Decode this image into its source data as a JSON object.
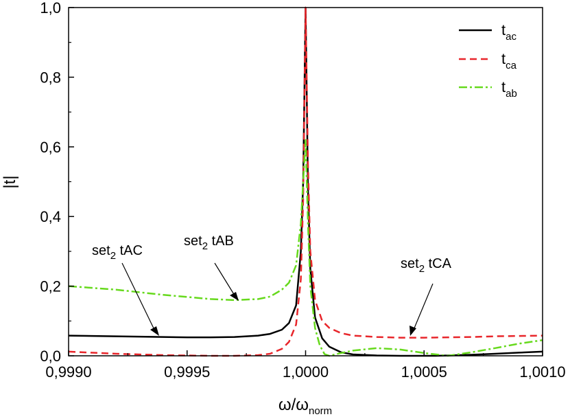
{
  "chart_data": {
    "type": "line",
    "title": "",
    "xlabel": "ω/ω",
    "xlabel_sub": "norm",
    "ylabel": "|t|",
    "xlim": [
      0.999,
      1.001
    ],
    "ylim": [
      0.0,
      1.0
    ],
    "x_ticks": [
      "0,9990",
      "0,9995",
      "1,0000",
      "1,0005",
      "1,0010"
    ],
    "y_ticks": [
      "0,0",
      "0,2",
      "0,4",
      "0,6",
      "0,8",
      "1,0"
    ],
    "grid": false,
    "legend_position": "top-right",
    "series": [
      {
        "name": "t",
        "name_sub": "ac",
        "color": "#000000",
        "style": "solid",
        "x": [
          0.999,
          0.9992,
          0.9994,
          0.9995,
          0.9996,
          0.9997,
          0.9998,
          0.99985,
          0.9999,
          0.99993,
          0.99996,
          0.99998,
          0.99999,
          1.0,
          1.00001,
          1.00002,
          1.00004,
          1.00007,
          1.0001,
          1.00015,
          1.0002,
          1.0003,
          1.0004,
          1.0005,
          1.00055,
          1.0006,
          1.0007,
          1.0008,
          1.0009,
          1.001
        ],
        "y": [
          0.058,
          0.056,
          0.054,
          0.053,
          0.053,
          0.054,
          0.058,
          0.063,
          0.075,
          0.094,
          0.145,
          0.3,
          0.5,
          1.0,
          0.48,
          0.25,
          0.11,
          0.05,
          0.026,
          0.01,
          0.004,
          0.001,
          0.0,
          0.0,
          0.0,
          0.001,
          0.003,
          0.006,
          0.009,
          0.012
        ]
      },
      {
        "name": "t",
        "name_sub": "ca",
        "color": "#e8262b",
        "style": "dashed",
        "x": [
          0.999,
          0.9992,
          0.9994,
          0.9996,
          0.9997,
          0.9998,
          0.99985,
          0.9999,
          0.99993,
          0.99996,
          0.99998,
          0.99999,
          1.0,
          1.00001,
          1.00002,
          1.00004,
          1.00007,
          1.0001,
          1.00015,
          1.0002,
          1.0003,
          1.0004,
          1.0005,
          1.0006,
          1.0007,
          1.0008,
          1.0009,
          1.001
        ],
        "y": [
          0.012,
          0.006,
          0.002,
          0.0,
          0.0,
          0.002,
          0.006,
          0.02,
          0.04,
          0.09,
          0.22,
          0.45,
          1.0,
          0.55,
          0.3,
          0.16,
          0.1,
          0.08,
          0.065,
          0.058,
          0.054,
          0.052,
          0.052,
          0.053,
          0.054,
          0.056,
          0.057,
          0.058
        ]
      },
      {
        "name": "t",
        "name_sub": "ab",
        "color": "#66d91c",
        "style": "dashdot",
        "x": [
          0.999,
          0.9992,
          0.9994,
          0.9996,
          0.9997,
          0.9998,
          0.99985,
          0.9999,
          0.99993,
          0.99996,
          0.99998,
          0.99999,
          1.0,
          1.00001,
          1.00002,
          1.00004,
          1.00006,
          1.00008,
          1.0001,
          1.00015,
          1.0002,
          1.0003,
          1.0004,
          1.0005,
          1.0006,
          1.0007,
          1.0008,
          1.0009,
          1.001
        ],
        "y": [
          0.2,
          0.19,
          0.175,
          0.163,
          0.16,
          0.163,
          0.17,
          0.19,
          0.21,
          0.26,
          0.38,
          0.5,
          0.62,
          0.38,
          0.2,
          0.08,
          0.03,
          0.005,
          0.0,
          0.008,
          0.015,
          0.022,
          0.018,
          0.008,
          0.0,
          0.01,
          0.022,
          0.035,
          0.045
        ]
      }
    ],
    "annotations": [
      {
        "text": "set",
        "sub": "2",
        "rest": " tAC",
        "target_x": 0.99935,
        "target_y": 0.054
      },
      {
        "text": "set",
        "sub": "2",
        "rest": " tAB",
        "target_x": 0.99974,
        "target_y": 0.16
      },
      {
        "text": "set",
        "sub": "2",
        "rest": " tCA",
        "target_x": 1.00035,
        "target_y": 0.054
      }
    ]
  }
}
